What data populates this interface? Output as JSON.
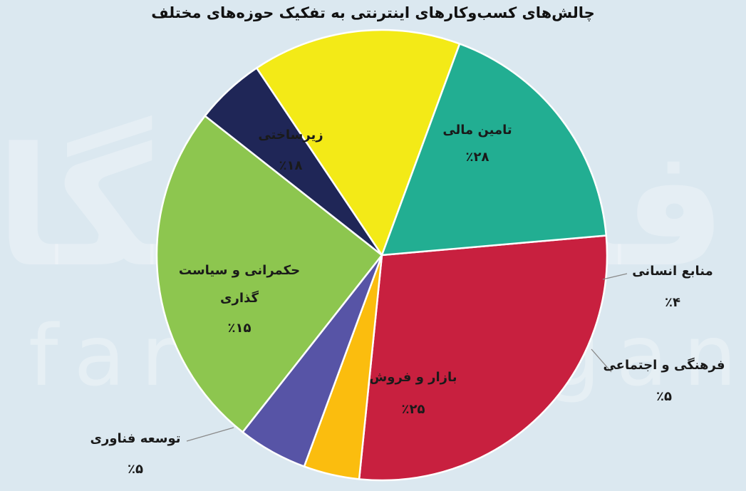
{
  "chart_data": {
    "type": "pie",
    "title": "چالش‌های کسب‌وکارهای اینترنتی به تفکیک حوزه‌های مختلف",
    "slices": [
      {
        "label": "تامین مالی",
        "value": 28,
        "value_label": "٪۲۸",
        "color": "#c8203f"
      },
      {
        "label": "منابع انسانی",
        "value": 4,
        "value_label": "٪۴",
        "color": "#fbbd0e"
      },
      {
        "label": "فرهنگی و اجتماعی",
        "value": 5,
        "value_label": "٪۵",
        "color": "#5754a6"
      },
      {
        "label": "بازار و فروش",
        "value": 25,
        "value_label": "٪۲۵",
        "color": "#8dc64f"
      },
      {
        "label": "توسعه فناوری",
        "value": 5,
        "value_label": "٪۵",
        "color": "#1f2657"
      },
      {
        "label": "حکمرانی و سیاست گذاری",
        "value": 15,
        "value_label": "٪۱۵",
        "color": "#f3ea17"
      },
      {
        "label": "زیرساختی",
        "value": 18,
        "value_label": "٪۱۸",
        "color": "#22ae92"
      }
    ]
  },
  "watermark": {
    "fa": "فرهیختگان",
    "en": "farhikhtegan"
  }
}
